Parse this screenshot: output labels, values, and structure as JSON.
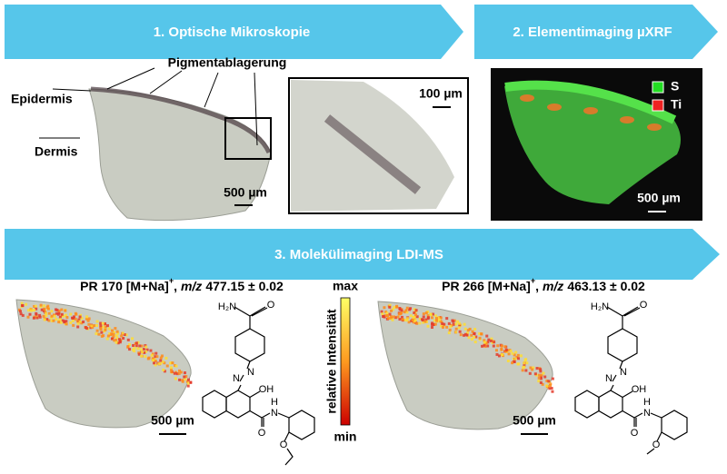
{
  "panels": {
    "optical": {
      "title": "1. Optische Mikroskopie",
      "pigment": "Pigmentablagerung",
      "epidermis": "Epidermis",
      "dermis": "Dermis",
      "scale": "500 µm",
      "zoom_scale": "100 µm"
    },
    "xrf": {
      "title": "2. Elementimaging µXRF",
      "legend": [
        {
          "label": "S",
          "color": "#22dd22"
        },
        {
          "label": "Ti",
          "color": "#ee2222"
        }
      ],
      "scale": "500 µm"
    },
    "ldi": {
      "title": "3. Molekülimaging LDI-MS",
      "colorbar": {
        "max": "max",
        "min": "min",
        "label": "relative Intensität"
      },
      "images": [
        {
          "name": "PR 170 [M+Na]",
          "charge": "+",
          "sep": ",",
          "mz_label": "m/z",
          "mz": "477.15 ± 0.02",
          "scale": "500 µm",
          "atoms": [
            "H₂N",
            "O",
            "N",
            "N",
            "OH",
            "O",
            "N",
            "H",
            "O"
          ]
        },
        {
          "name": "PR 266 [M+Na]",
          "charge": "+",
          "sep": ",",
          "mz_label": "m/z",
          "mz": "463.13 ± 0.02",
          "scale": "500 µm",
          "atoms": [
            "H₂N",
            "O",
            "N",
            "N",
            "OH",
            "O",
            "N",
            "H",
            "O"
          ]
        }
      ]
    }
  }
}
